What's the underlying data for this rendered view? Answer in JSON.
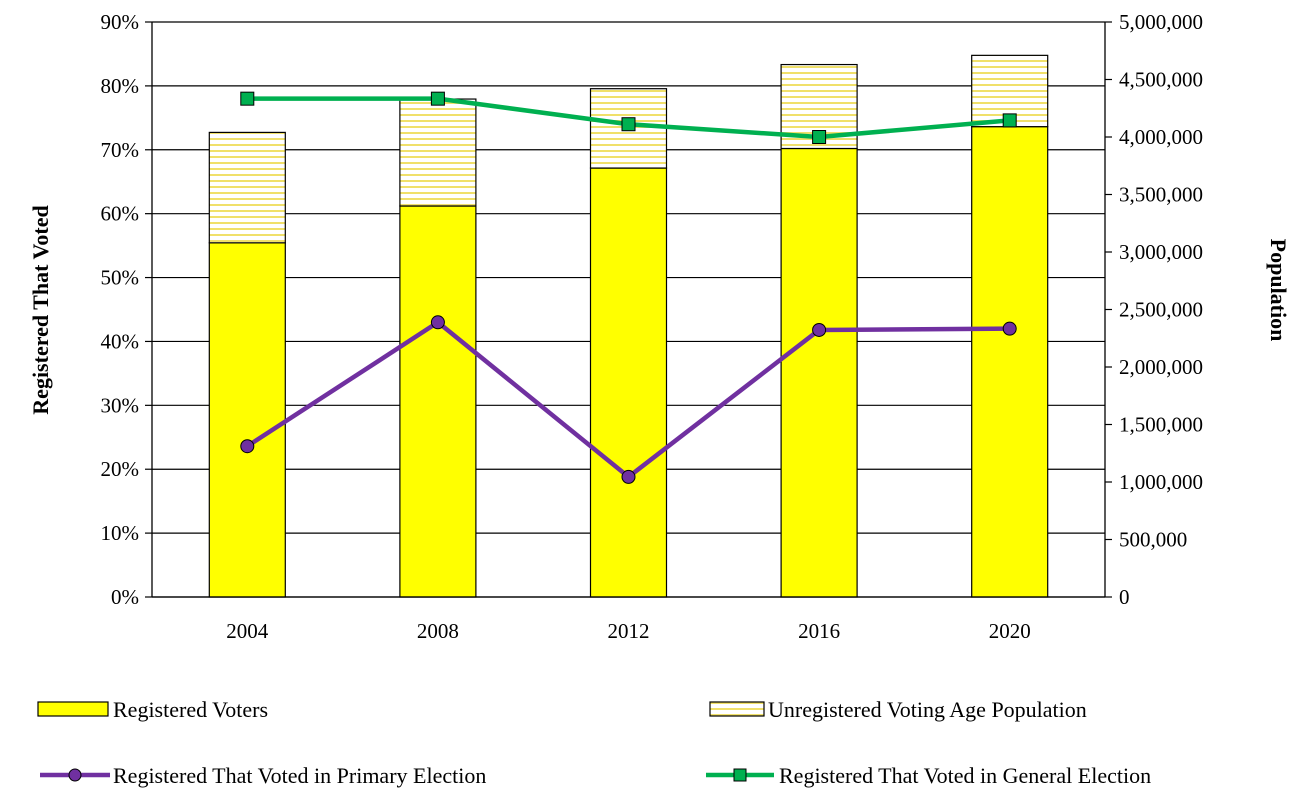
{
  "chart_data": {
    "type": "bar",
    "categories": [
      "2004",
      "2008",
      "2012",
      "2016",
      "2020"
    ],
    "y_left": {
      "label": "Registered That Voted",
      "ylim": [
        0,
        0.9
      ],
      "ticks": [
        "0%",
        "10%",
        "20%",
        "30%",
        "40%",
        "50%",
        "60%",
        "70%",
        "80%",
        "90%"
      ]
    },
    "y_right": {
      "label": "Population",
      "ylim": [
        0,
        5000000
      ],
      "ticks": [
        "0",
        "500,000",
        "1,000,000",
        "1,500,000",
        "2,000,000",
        "2,500,000",
        "3,000,000",
        "3,500,000",
        "4,000,000",
        "4,500,000",
        "5,000,000"
      ]
    },
    "bar_series": [
      {
        "name": "Registered Voters",
        "axis": "right",
        "values": [
          3080000,
          3400000,
          3730000,
          3900000,
          4090000
        ],
        "color": "#ffff00"
      },
      {
        "name": "Unregistered Voting Age Population",
        "axis": "right",
        "values": [
          960000,
          930000,
          690000,
          730000,
          620000
        ],
        "color": "#ffffff",
        "hatch": "#f2e36b"
      }
    ],
    "line_series": [
      {
        "name": "Registered That Voted in Primary Election",
        "axis": "left",
        "values": [
          0.236,
          0.43,
          0.188,
          0.418,
          0.42
        ],
        "color": "#7030a0",
        "marker": "circle"
      },
      {
        "name": "Registered That Voted in General Election",
        "axis": "left",
        "values": [
          0.78,
          0.78,
          0.74,
          0.72,
          0.746
        ],
        "color": "#00b050",
        "marker": "square"
      }
    ],
    "grid": true,
    "legend": "bottom"
  }
}
